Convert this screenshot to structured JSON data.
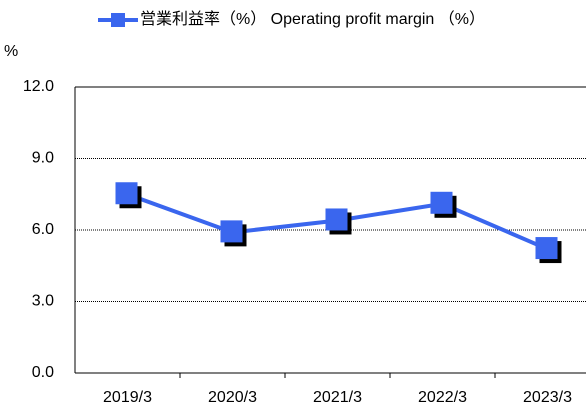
{
  "chart_data": {
    "type": "line",
    "y_axis_label": "%",
    "categories": [
      "2019/3",
      "2020/3",
      "2021/3",
      "2022/3",
      "2023/3"
    ],
    "series": [
      {
        "name": "営業利益率（%） Operating profit margin （%）",
        "color": "#3a66ee",
        "values": [
          7.5,
          5.9,
          6.4,
          7.1,
          5.2
        ]
      }
    ],
    "ylim": [
      0,
      12
    ],
    "yticks": [
      {
        "value": 0,
        "label": "0.0"
      },
      {
        "value": 3,
        "label": "3.0"
      },
      {
        "value": 6,
        "label": "6.0"
      },
      {
        "value": 9,
        "label": "9.0"
      },
      {
        "value": 12,
        "label": "12.0"
      }
    ],
    "grid": true
  }
}
